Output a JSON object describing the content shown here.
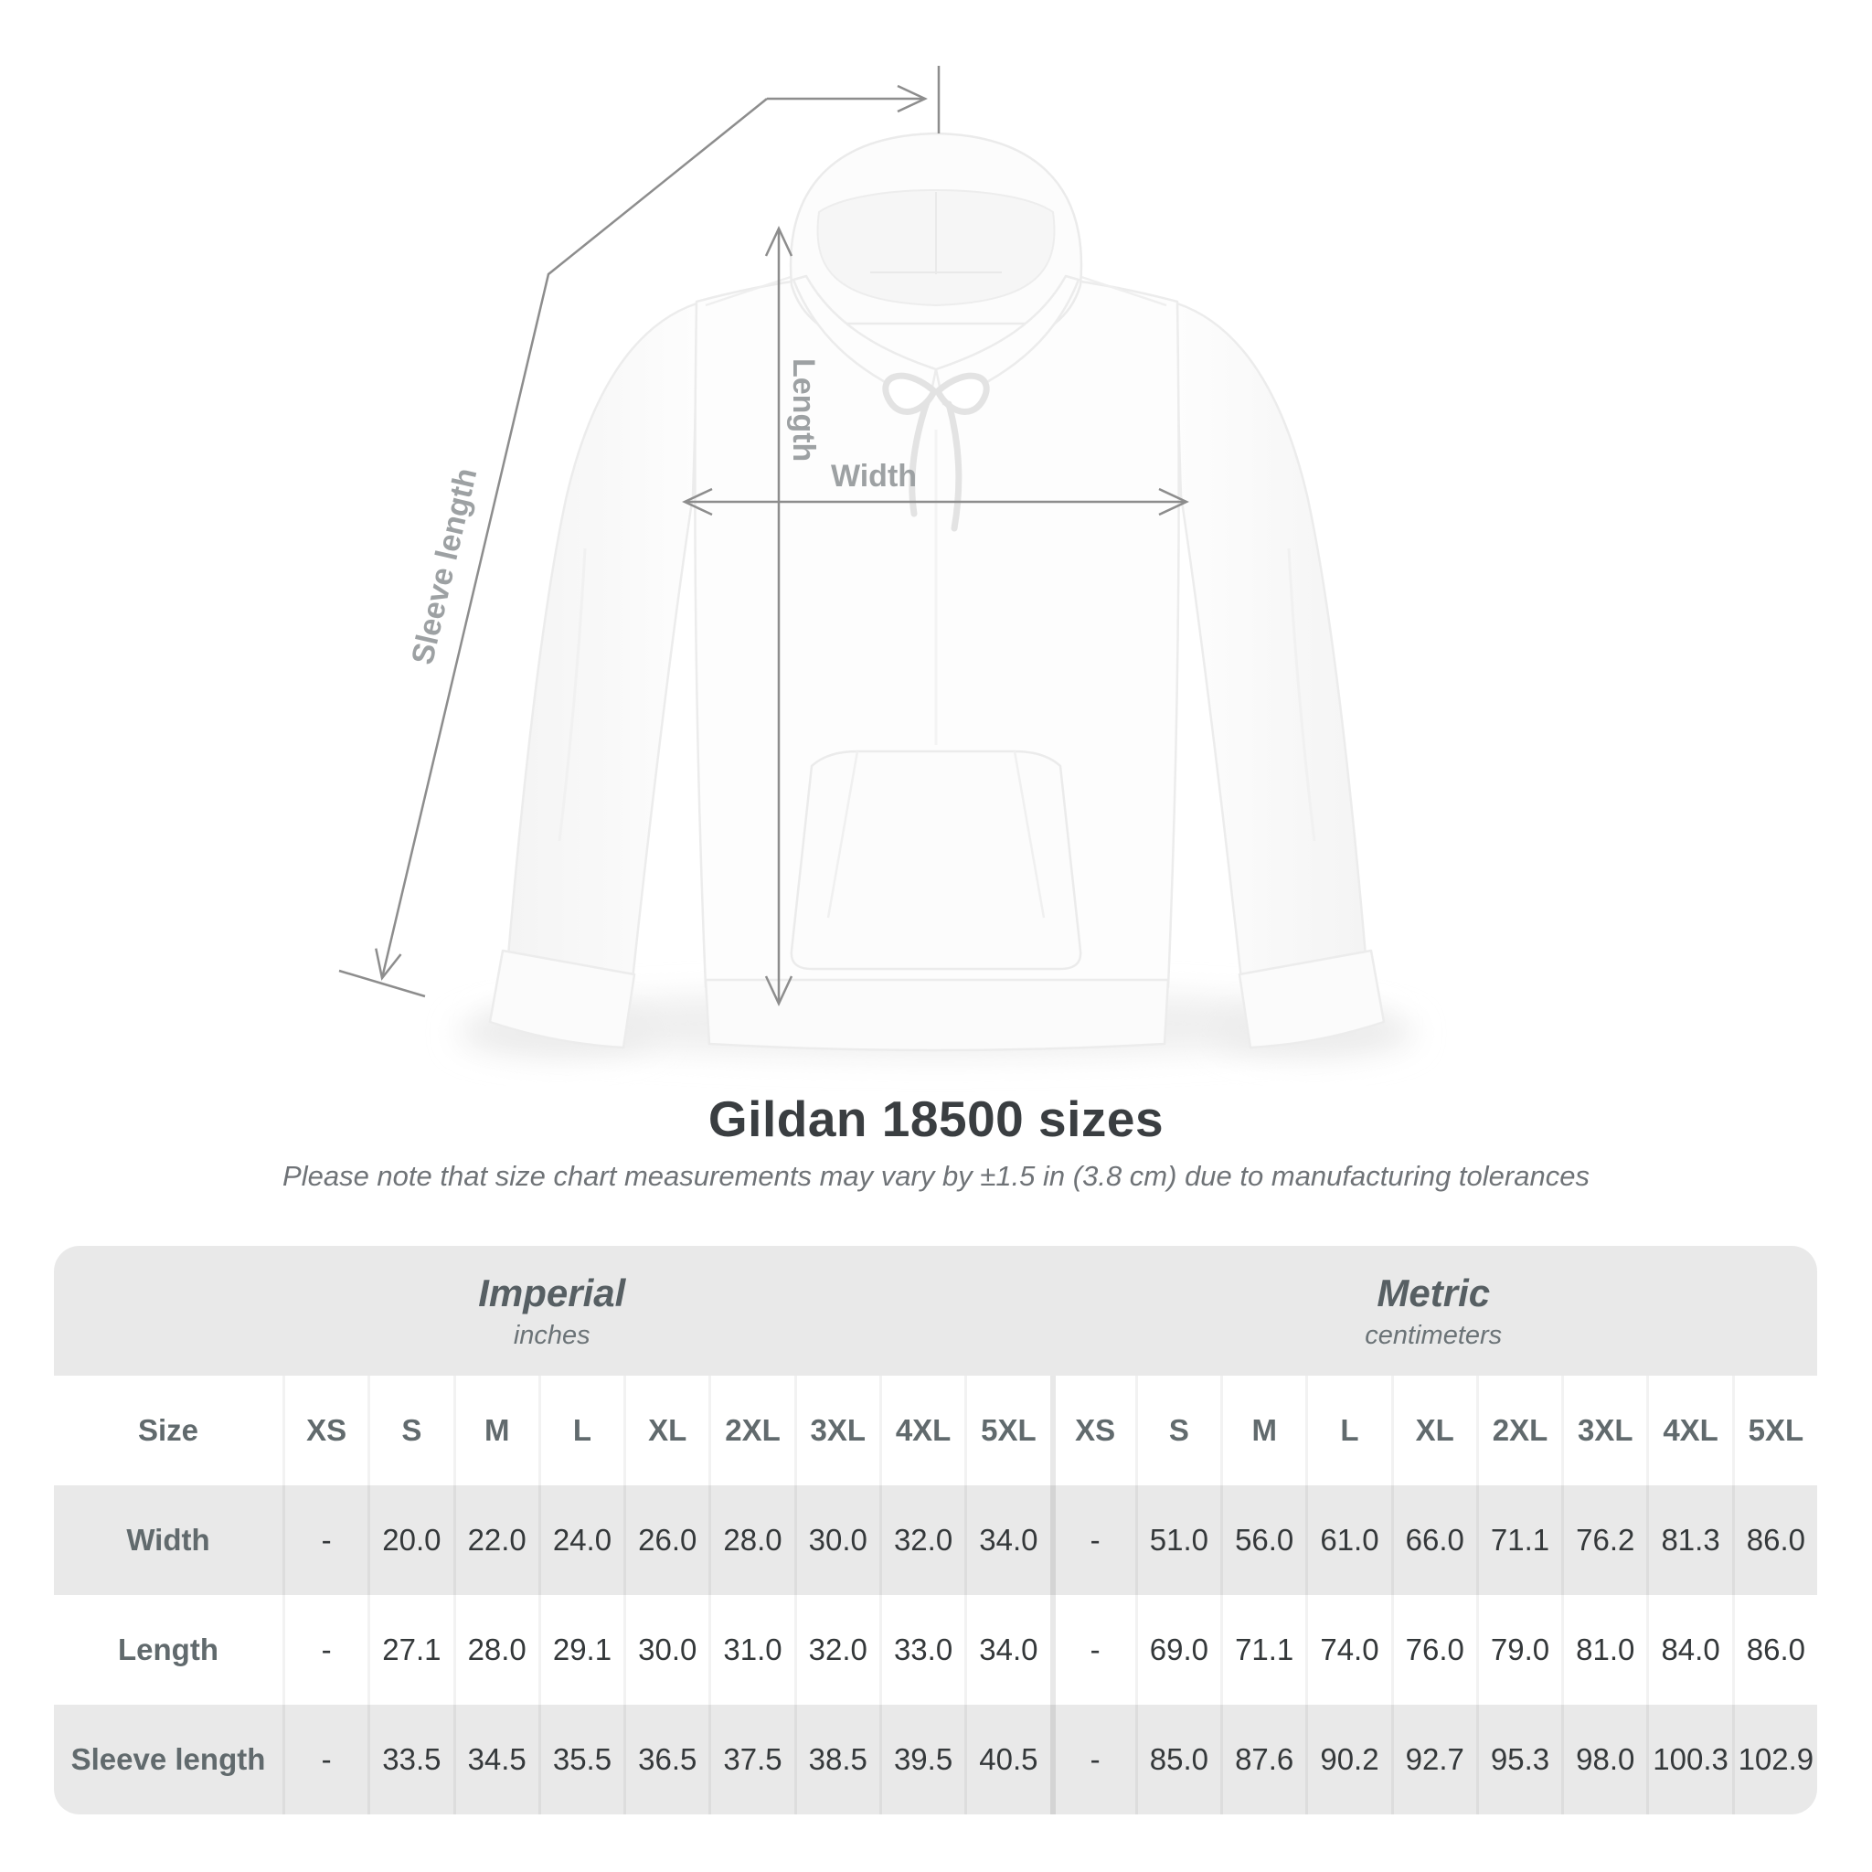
{
  "diagram": {
    "labels": {
      "width": "Width",
      "length": "Length",
      "sleeve": "Sleeve length"
    }
  },
  "title": "Gildan 18500 sizes",
  "subtitle": "Please note that size chart measurements may vary by ±1.5 in (3.8 cm) due to manufacturing tolerances",
  "chart_data": {
    "type": "table",
    "title": "Gildan 18500 sizes",
    "size_column_header": "Size",
    "imperial_label": "Imperial",
    "imperial_unit": "inches",
    "metric_label": "Metric",
    "metric_unit": "centimeters",
    "sizes": [
      "XS",
      "S",
      "M",
      "L",
      "XL",
      "2XL",
      "3XL",
      "4XL",
      "5XL"
    ],
    "empty_value": "-",
    "rows": [
      {
        "label": "Width",
        "imperial": [
          "-",
          "20.0",
          "22.0",
          "24.0",
          "26.0",
          "28.0",
          "30.0",
          "32.0",
          "34.0"
        ],
        "metric": [
          "-",
          "51.0",
          "56.0",
          "61.0",
          "66.0",
          "71.1",
          "76.2",
          "81.3",
          "86.0"
        ]
      },
      {
        "label": "Length",
        "imperial": [
          "-",
          "27.1",
          "28.0",
          "29.1",
          "30.0",
          "31.0",
          "32.0",
          "33.0",
          "34.0"
        ],
        "metric": [
          "-",
          "69.0",
          "71.1",
          "74.0",
          "76.0",
          "79.0",
          "81.0",
          "84.0",
          "86.0"
        ]
      },
      {
        "label": "Sleeve length",
        "imperial": [
          "-",
          "33.5",
          "34.5",
          "35.5",
          "36.5",
          "37.5",
          "38.5",
          "39.5",
          "40.5"
        ],
        "metric": [
          "-",
          "85.0",
          "87.6",
          "90.2",
          "92.7",
          "95.3",
          "98.0",
          "100.3",
          "102.9"
        ]
      }
    ]
  },
  "colors": {
    "arrow": "#8d8d8d",
    "diagram_label": "#9da1a3",
    "table_stripe": "#e9e9e9",
    "value_text": "#34383a",
    "muted_text": "#616a6d"
  }
}
